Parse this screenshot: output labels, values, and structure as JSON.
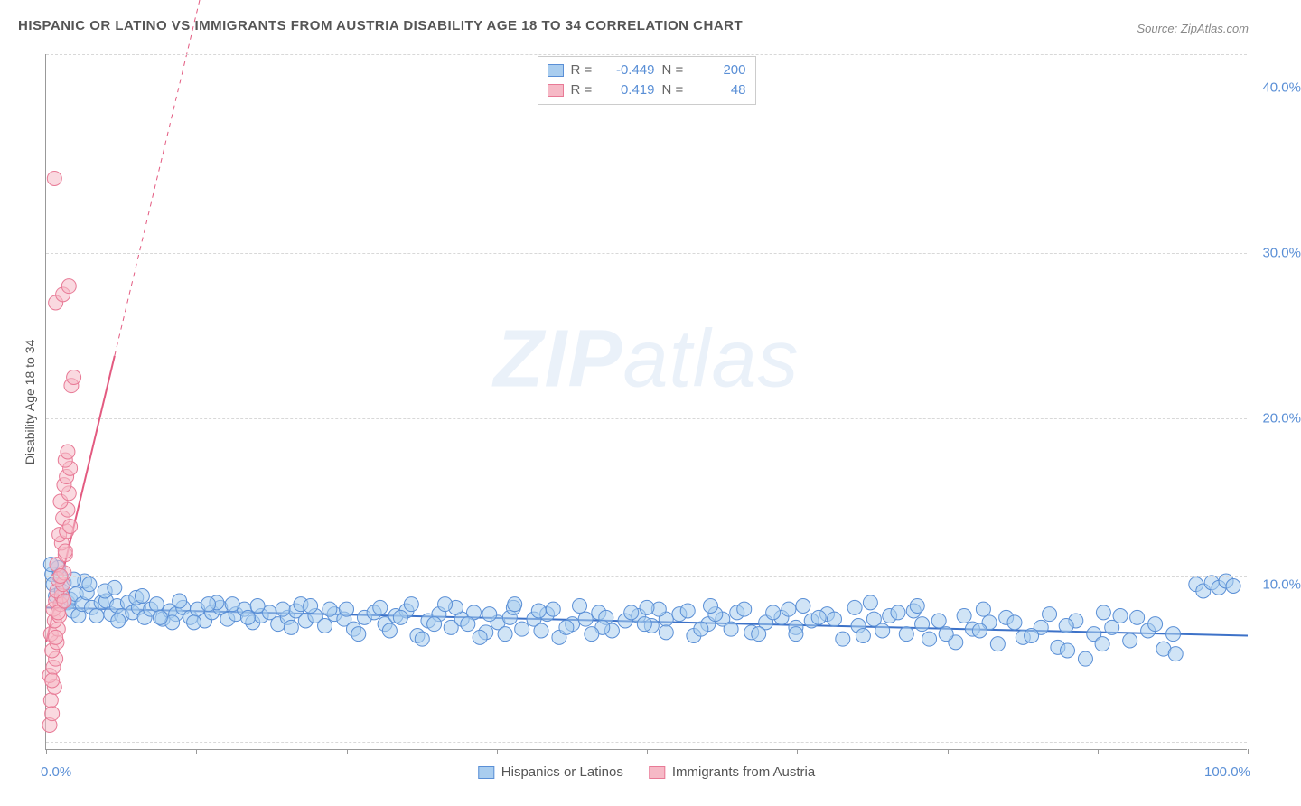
{
  "title": "HISPANIC OR LATINO VS IMMIGRANTS FROM AUSTRIA DISABILITY AGE 18 TO 34 CORRELATION CHART",
  "source": "Source: ZipAtlas.com",
  "watermark_zip": "ZIP",
  "watermark_atlas": "atlas",
  "ylabel": "Disability Age 18 to 34",
  "chart": {
    "type": "scatter",
    "xlim": [
      0,
      100
    ],
    "ylim": [
      0,
      42
    ],
    "xtick_positions": [
      0,
      12.5,
      25,
      37.5,
      50,
      62.5,
      75,
      87.5,
      100
    ],
    "x_axis_labels": [
      {
        "value": "0.0%",
        "x": 0
      },
      {
        "value": "100.0%",
        "x": 100
      }
    ],
    "ytick_labels": [
      {
        "value": "10.0%",
        "y": 10
      },
      {
        "value": "20.0%",
        "y": 20
      },
      {
        "value": "30.0%",
        "y": 30
      },
      {
        "value": "40.0%",
        "y": 40
      }
    ],
    "gridlines_y": [
      0.5,
      10.5,
      20,
      30,
      42
    ],
    "background_color": "#ffffff",
    "grid_color": "#d8d8d8",
    "series": [
      {
        "name": "Hispanics or Latinos",
        "fill_color": "#a9cdef",
        "stroke_color": "#5a8fd6",
        "fill_opacity": 0.55,
        "marker_radius": 8,
        "R": "-0.449",
        "N": "200",
        "trend": {
          "x1": 0,
          "y1": 8.6,
          "x2": 100,
          "y2": 6.9,
          "color": "#3d72c8",
          "width": 2,
          "dash_after_x": null
        },
        "points": [
          [
            0.5,
            10.6
          ],
          [
            0.6,
            10.0
          ],
          [
            0.8,
            9.3
          ],
          [
            1.1,
            10.5
          ],
          [
            1.3,
            9.6
          ],
          [
            1.5,
            10.1
          ],
          [
            1.8,
            8.9
          ],
          [
            2.0,
            9.1
          ],
          [
            2.2,
            8.4
          ],
          [
            2.5,
            9.4
          ],
          [
            2.7,
            8.1
          ],
          [
            3.0,
            8.8
          ],
          [
            3.4,
            9.5
          ],
          [
            3.8,
            8.6
          ],
          [
            4.2,
            8.1
          ],
          [
            4.6,
            8.9
          ],
          [
            5.0,
            9.0
          ],
          [
            5.4,
            8.2
          ],
          [
            5.9,
            8.7
          ],
          [
            6.3,
            8.1
          ],
          [
            6.8,
            8.9
          ],
          [
            7.2,
            8.3
          ],
          [
            7.7,
            8.6
          ],
          [
            8.2,
            8.0
          ],
          [
            8.7,
            8.5
          ],
          [
            9.2,
            8.8
          ],
          [
            9.7,
            7.9
          ],
          [
            10.3,
            8.4
          ],
          [
            10.8,
            8.2
          ],
          [
            11.4,
            8.6
          ],
          [
            12.0,
            8.0
          ],
          [
            12.6,
            8.5
          ],
          [
            13.2,
            7.8
          ],
          [
            13.8,
            8.3
          ],
          [
            14.5,
            8.6
          ],
          [
            15.1,
            7.9
          ],
          [
            15.8,
            8.2
          ],
          [
            16.5,
            8.5
          ],
          [
            17.2,
            7.7
          ],
          [
            17.9,
            8.1
          ],
          [
            18.6,
            8.3
          ],
          [
            19.3,
            7.6
          ],
          [
            20.1,
            8.0
          ],
          [
            20.8,
            8.4
          ],
          [
            21.6,
            7.8
          ],
          [
            22.4,
            8.1
          ],
          [
            23.2,
            7.5
          ],
          [
            24.0,
            8.2
          ],
          [
            24.8,
            7.9
          ],
          [
            25.6,
            7.3
          ],
          [
            26.5,
            8.0
          ],
          [
            27.3,
            8.3
          ],
          [
            28.2,
            7.6
          ],
          [
            29.1,
            8.1
          ],
          [
            30.0,
            8.4
          ],
          [
            30.9,
            6.9
          ],
          [
            31.8,
            7.8
          ],
          [
            32.7,
            8.2
          ],
          [
            33.7,
            7.4
          ],
          [
            34.6,
            7.9
          ],
          [
            35.6,
            8.3
          ],
          [
            36.6,
            7.1
          ],
          [
            37.6,
            7.7
          ],
          [
            38.6,
            8.0
          ],
          [
            39.6,
            7.3
          ],
          [
            40.6,
            7.9
          ],
          [
            41.7,
            8.2
          ],
          [
            42.7,
            6.8
          ],
          [
            43.8,
            7.6
          ],
          [
            44.9,
            7.9
          ],
          [
            46.0,
            8.3
          ],
          [
            47.1,
            7.2
          ],
          [
            48.2,
            7.8
          ],
          [
            49.3,
            8.1
          ],
          [
            50.4,
            7.5
          ],
          [
            51.6,
            7.9
          ],
          [
            52.7,
            8.2
          ],
          [
            53.9,
            6.9
          ],
          [
            55.1,
            7.6
          ],
          [
            56.3,
            7.9
          ],
          [
            57.5,
            8.3
          ],
          [
            58.7,
            7.1
          ],
          [
            59.9,
            7.7
          ],
          [
            61.2,
            8.0
          ],
          [
            62.4,
            7.4
          ],
          [
            63.7,
            7.8
          ],
          [
            65.0,
            8.2
          ],
          [
            66.3,
            6.7
          ],
          [
            67.6,
            7.5
          ],
          [
            68.9,
            7.9
          ],
          [
            70.2,
            8.1
          ],
          [
            71.6,
            7.0
          ],
          [
            72.9,
            7.6
          ],
          [
            74.3,
            7.8
          ],
          [
            75.7,
            6.5
          ],
          [
            77.1,
            7.3
          ],
          [
            78.5,
            7.7
          ],
          [
            79.9,
            8.0
          ],
          [
            81.3,
            6.8
          ],
          [
            82.8,
            7.4
          ],
          [
            84.2,
            6.2
          ],
          [
            85.7,
            7.8
          ],
          [
            87.2,
            7.0
          ],
          [
            88.7,
            7.4
          ],
          [
            90.2,
            6.6
          ],
          [
            91.7,
            7.2
          ],
          [
            95.7,
            10.0
          ],
          [
            96.3,
            9.6
          ],
          [
            97.0,
            10.1
          ],
          [
            97.6,
            9.8
          ],
          [
            98.2,
            10.2
          ],
          [
            98.8,
            9.9
          ],
          [
            3.2,
            10.2
          ],
          [
            4.9,
            9.6
          ],
          [
            7.5,
            9.2
          ],
          [
            11.1,
            9.0
          ],
          [
            14.2,
            8.9
          ],
          [
            17.6,
            8.7
          ],
          [
            21.2,
            8.8
          ],
          [
            25.0,
            8.5
          ],
          [
            29.5,
            8.0
          ],
          [
            34.1,
            8.6
          ],
          [
            38.2,
            7.0
          ],
          [
            42.2,
            8.5
          ],
          [
            46.6,
            8.0
          ],
          [
            51.0,
            8.5
          ],
          [
            55.7,
            8.2
          ],
          [
            60.5,
            8.3
          ],
          [
            65.6,
            7.9
          ],
          [
            70.9,
            8.3
          ],
          [
            76.4,
            8.1
          ],
          [
            82.0,
            6.9
          ],
          [
            87.9,
            6.4
          ],
          [
            31.3,
            6.7
          ],
          [
            36.1,
            6.8
          ],
          [
            41.2,
            7.2
          ],
          [
            46.3,
            7.4
          ],
          [
            51.6,
            7.1
          ],
          [
            57.0,
            7.3
          ],
          [
            62.4,
            7.0
          ],
          [
            68.0,
            6.9
          ],
          [
            73.5,
            6.7
          ],
          [
            79.2,
            6.4
          ],
          [
            85.0,
            6.0
          ],
          [
            27.8,
            8.6
          ],
          [
            33.2,
            8.8
          ],
          [
            38.9,
            8.6
          ],
          [
            44.4,
            8.7
          ],
          [
            50.0,
            8.6
          ],
          [
            55.3,
            8.7
          ],
          [
            61.8,
            8.5
          ],
          [
            67.3,
            8.6
          ],
          [
            72.2,
            8.4
          ],
          [
            78.0,
            8.5
          ],
          [
            83.5,
            8.2
          ],
          [
            89.4,
            8.1
          ],
          [
            93.0,
            6.1
          ],
          [
            94.0,
            5.8
          ],
          [
            86.5,
            5.5
          ],
          [
            88.0,
            8.3
          ],
          [
            90.8,
            8.0
          ],
          [
            92.3,
            7.6
          ],
          [
            93.8,
            7.0
          ],
          [
            80.6,
            7.7
          ],
          [
            74.9,
            7.0
          ],
          [
            69.6,
            7.2
          ],
          [
            64.3,
            8.0
          ],
          [
            59.3,
            7.0
          ],
          [
            54.5,
            7.3
          ],
          [
            49.8,
            7.6
          ],
          [
            45.4,
            7.0
          ],
          [
            41.0,
            8.4
          ],
          [
            36.9,
            8.2
          ],
          [
            32.3,
            7.6
          ],
          [
            28.6,
            7.2
          ],
          [
            23.6,
            8.5
          ],
          [
            20.4,
            7.4
          ],
          [
            16.8,
            8.0
          ],
          [
            13.5,
            8.8
          ],
          [
            10.5,
            7.7
          ],
          [
            8.0,
            9.3
          ],
          [
            5.7,
            9.8
          ],
          [
            3.6,
            10.0
          ],
          [
            2.3,
            10.3
          ],
          [
            1.0,
            11.0
          ],
          [
            0.4,
            11.2
          ],
          [
            6.0,
            7.8
          ],
          [
            9.5,
            8.0
          ],
          [
            12.3,
            7.7
          ],
          [
            15.5,
            8.8
          ],
          [
            19.7,
            8.5
          ],
          [
            22.0,
            8.7
          ],
          [
            26.0,
            7.0
          ],
          [
            30.4,
            8.8
          ],
          [
            35.1,
            7.6
          ],
          [
            39.0,
            8.8
          ],
          [
            43.3,
            7.4
          ],
          [
            48.7,
            8.3
          ],
          [
            53.4,
            8.4
          ],
          [
            58.1,
            8.5
          ],
          [
            63.0,
            8.7
          ],
          [
            68.6,
            8.9
          ],
          [
            72.5,
            8.7
          ],
          [
            77.7,
            7.2
          ],
          [
            84.9,
            7.5
          ]
        ]
      },
      {
        "name": "Immigrants from Austria",
        "fill_color": "#f6b9c6",
        "stroke_color": "#e87a96",
        "fill_opacity": 0.55,
        "marker_radius": 8,
        "R": "0.419",
        "N": "48",
        "trend": {
          "x1": 0,
          "y1": 6.5,
          "x2": 15,
          "y2": 52,
          "color": "#e35a80",
          "width": 2,
          "dash_after_x": 5.7
        },
        "points": [
          [
            0.3,
            1.5
          ],
          [
            0.5,
            2.2
          ],
          [
            0.4,
            3.0
          ],
          [
            0.7,
            3.8
          ],
          [
            0.3,
            4.5
          ],
          [
            0.6,
            5.0
          ],
          [
            0.8,
            5.5
          ],
          [
            0.5,
            6.0
          ],
          [
            0.9,
            6.5
          ],
          [
            0.4,
            7.0
          ],
          [
            1.0,
            7.3
          ],
          [
            0.7,
            7.8
          ],
          [
            1.1,
            8.1
          ],
          [
            0.6,
            8.5
          ],
          [
            1.2,
            8.8
          ],
          [
            0.8,
            9.0
          ],
          [
            1.3,
            9.3
          ],
          [
            0.9,
            9.6
          ],
          [
            1.4,
            10.0
          ],
          [
            1.0,
            10.3
          ],
          [
            1.5,
            10.7
          ],
          [
            0.9,
            11.2
          ],
          [
            1.6,
            11.8
          ],
          [
            1.3,
            12.5
          ],
          [
            1.1,
            13.0
          ],
          [
            1.7,
            13.2
          ],
          [
            1.4,
            14.0
          ],
          [
            1.8,
            14.5
          ],
          [
            1.2,
            15.0
          ],
          [
            1.9,
            15.5
          ],
          [
            1.5,
            16.0
          ],
          [
            1.7,
            16.5
          ],
          [
            2.0,
            17.0
          ],
          [
            1.6,
            17.5
          ],
          [
            1.8,
            18.0
          ],
          [
            2.1,
            22.0
          ],
          [
            2.3,
            22.5
          ],
          [
            0.8,
            27.0
          ],
          [
            1.4,
            27.5
          ],
          [
            1.9,
            28.0
          ],
          [
            0.7,
            34.5
          ],
          [
            0.5,
            4.2
          ],
          [
            0.8,
            6.8
          ],
          [
            1.0,
            8.3
          ],
          [
            1.6,
            12.0
          ],
          [
            1.2,
            10.5
          ],
          [
            2.0,
            13.5
          ],
          [
            1.5,
            9.0
          ]
        ]
      }
    ]
  },
  "legend_bottom": [
    {
      "label": "Hispanics or Latinos",
      "fill": "#a9cdef",
      "stroke": "#5a8fd6"
    },
    {
      "label": "Immigrants from Austria",
      "fill": "#f6b9c6",
      "stroke": "#e87a96"
    }
  ]
}
